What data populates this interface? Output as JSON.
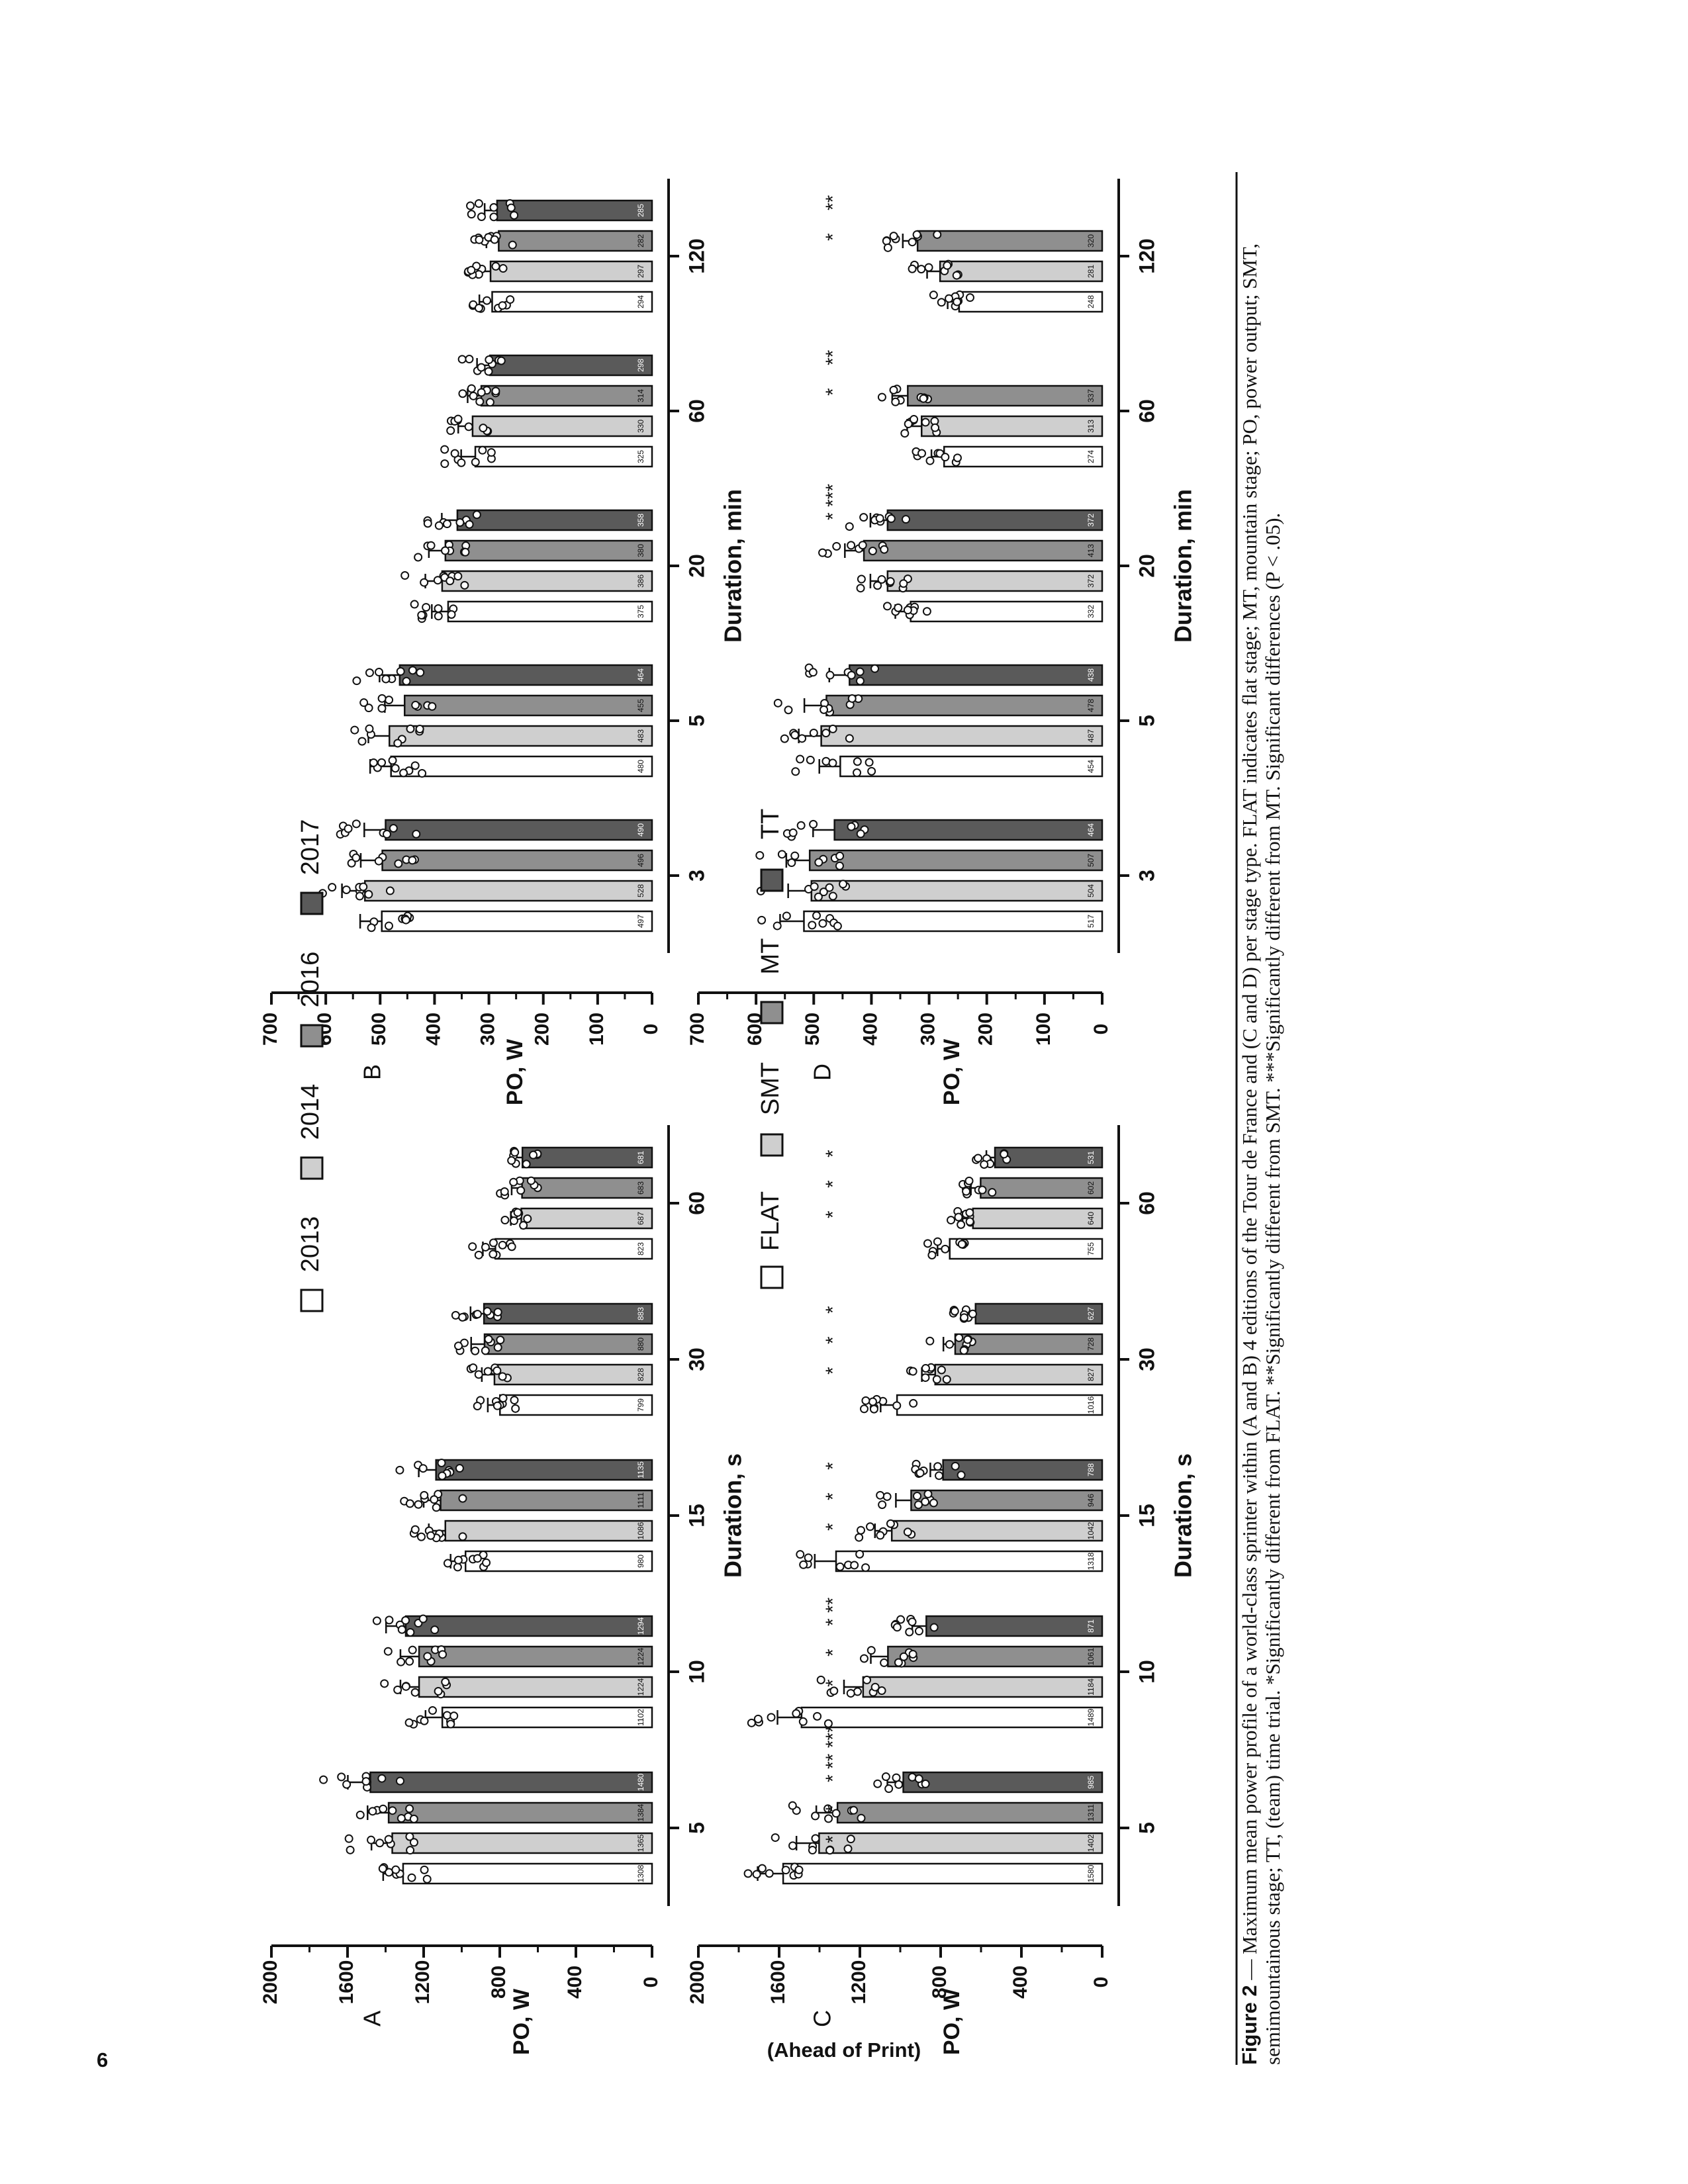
{
  "page": {
    "number": "6",
    "footer": "(Ahead of Print)"
  },
  "caption": {
    "label": "Figure 2",
    "text": " — Maximum mean power profile of a world-class sprinter within (A and B) 4 editions of the Tour de France and (C and D) per stage type. FLAT indicates flat stage; MT, mountain stage; PO, power output; SMT, semimountainous stage; TT, (team) time trial. *Significantly different from FLAT. **Significantly different from SMT. ***Significantly different from MT. Significant differences (P < .05)."
  },
  "legend_years": {
    "items": [
      {
        "label": "2013",
        "color": "#ffffff"
      },
      {
        "label": "2014",
        "color": "#cfcfcf"
      },
      {
        "label": "2016",
        "color": "#8f8f8f"
      },
      {
        "label": "2017",
        "color": "#5a5a5a"
      }
    ]
  },
  "legend_stages": {
    "items": [
      {
        "label": "FLAT",
        "color": "#ffffff"
      },
      {
        "label": "SMT",
        "color": "#cfcfcf"
      },
      {
        "label": "MT",
        "color": "#8f8f8f"
      },
      {
        "label": "TT",
        "color": "#5a5a5a"
      }
    ]
  },
  "chart_data": [
    {
      "panel": "A",
      "type": "bar",
      "xlabel": "Duration, s",
      "ylabel": "PO, W",
      "ylim": [
        0,
        2000
      ],
      "yticks": [
        "0",
        "400",
        "800",
        "1200",
        "1600",
        "2000"
      ],
      "categories": [
        "5",
        "10",
        "15",
        "30",
        "60"
      ],
      "series": [
        {
          "name": "2013",
          "values": [
            1308,
            1102,
            980,
            799,
            823
          ]
        },
        {
          "name": "2014",
          "values": [
            1365,
            1224,
            1086,
            828,
            687
          ]
        },
        {
          "name": "2016",
          "values": [
            1384,
            1224,
            1111,
            880,
            683
          ]
        },
        {
          "name": "2017",
          "values": [
            1480,
            1294,
            1135,
            883,
            681
          ]
        }
      ],
      "significance": []
    },
    {
      "panel": "B",
      "type": "bar",
      "xlabel": "Duration, min",
      "ylabel": "PO, W",
      "ylim": [
        0,
        700
      ],
      "yticks": [
        "0",
        "100",
        "200",
        "300",
        "400",
        "500",
        "600",
        "700"
      ],
      "categories": [
        "3",
        "5",
        "20",
        "60",
        "120"
      ],
      "series": [
        {
          "name": "2013",
          "values": [
            497,
            480,
            375,
            325,
            294
          ]
        },
        {
          "name": "2014",
          "values": [
            528,
            483,
            386,
            330,
            297
          ]
        },
        {
          "name": "2016",
          "values": [
            496,
            455,
            380,
            314,
            282
          ]
        },
        {
          "name": "2017",
          "values": [
            490,
            464,
            358,
            298,
            285
          ]
        }
      ],
      "significance": []
    },
    {
      "panel": "C",
      "type": "bar",
      "xlabel": "Duration, s",
      "ylabel": "PO, W",
      "ylim": [
        0,
        2000
      ],
      "yticks": [
        "0",
        "400",
        "800",
        "1200",
        "1600",
        "2000"
      ],
      "categories": [
        "5",
        "10",
        "15",
        "30",
        "60"
      ],
      "series": [
        {
          "name": "FLAT",
          "values": [
            1580,
            1489,
            1318,
            1016,
            755
          ]
        },
        {
          "name": "SMT",
          "values": [
            1402,
            1184,
            1042,
            827,
            640
          ]
        },
        {
          "name": "MT",
          "values": [
            1311,
            1061,
            946,
            728,
            602
          ]
        },
        {
          "name": "TT",
          "values": [
            985,
            871,
            788,
            627,
            531
          ]
        }
      ],
      "significance": [
        {
          "category": "5",
          "marks": [
            "*",
            "*",
            "* ** ***"
          ]
        },
        {
          "category": "10",
          "marks": [
            "*",
            "*",
            "* **"
          ]
        },
        {
          "category": "15",
          "marks": [
            "*",
            "*",
            "*"
          ]
        },
        {
          "category": "30",
          "marks": [
            "*",
            "*",
            "*"
          ]
        },
        {
          "category": "60",
          "marks": [
            "*",
            "*",
            "*"
          ]
        }
      ]
    },
    {
      "panel": "D",
      "type": "bar",
      "xlabel": "Duration, min",
      "ylabel": "PO, W",
      "ylim": [
        0,
        700
      ],
      "yticks": [
        "0",
        "100",
        "200",
        "300",
        "400",
        "500",
        "600",
        "700"
      ],
      "categories": [
        "3",
        "5",
        "20",
        "60",
        "120"
      ],
      "series": [
        {
          "name": "FLAT",
          "values": [
            517,
            454,
            332,
            274,
            248
          ]
        },
        {
          "name": "SMT",
          "values": [
            504,
            487,
            372,
            313,
            281
          ]
        },
        {
          "name": "MT",
          "values": [
            507,
            478,
            413,
            337,
            320
          ]
        },
        {
          "name": "TT",
          "values": [
            464,
            438,
            372,
            null,
            null
          ]
        }
      ],
      "significance": [
        {
          "category": "20",
          "marks": [
            "",
            "",
            "* ***"
          ]
        },
        {
          "category": "60",
          "marks": [
            "",
            "*",
            "**"
          ]
        },
        {
          "category": "120",
          "marks": [
            "",
            "*",
            "**"
          ]
        }
      ]
    }
  ]
}
